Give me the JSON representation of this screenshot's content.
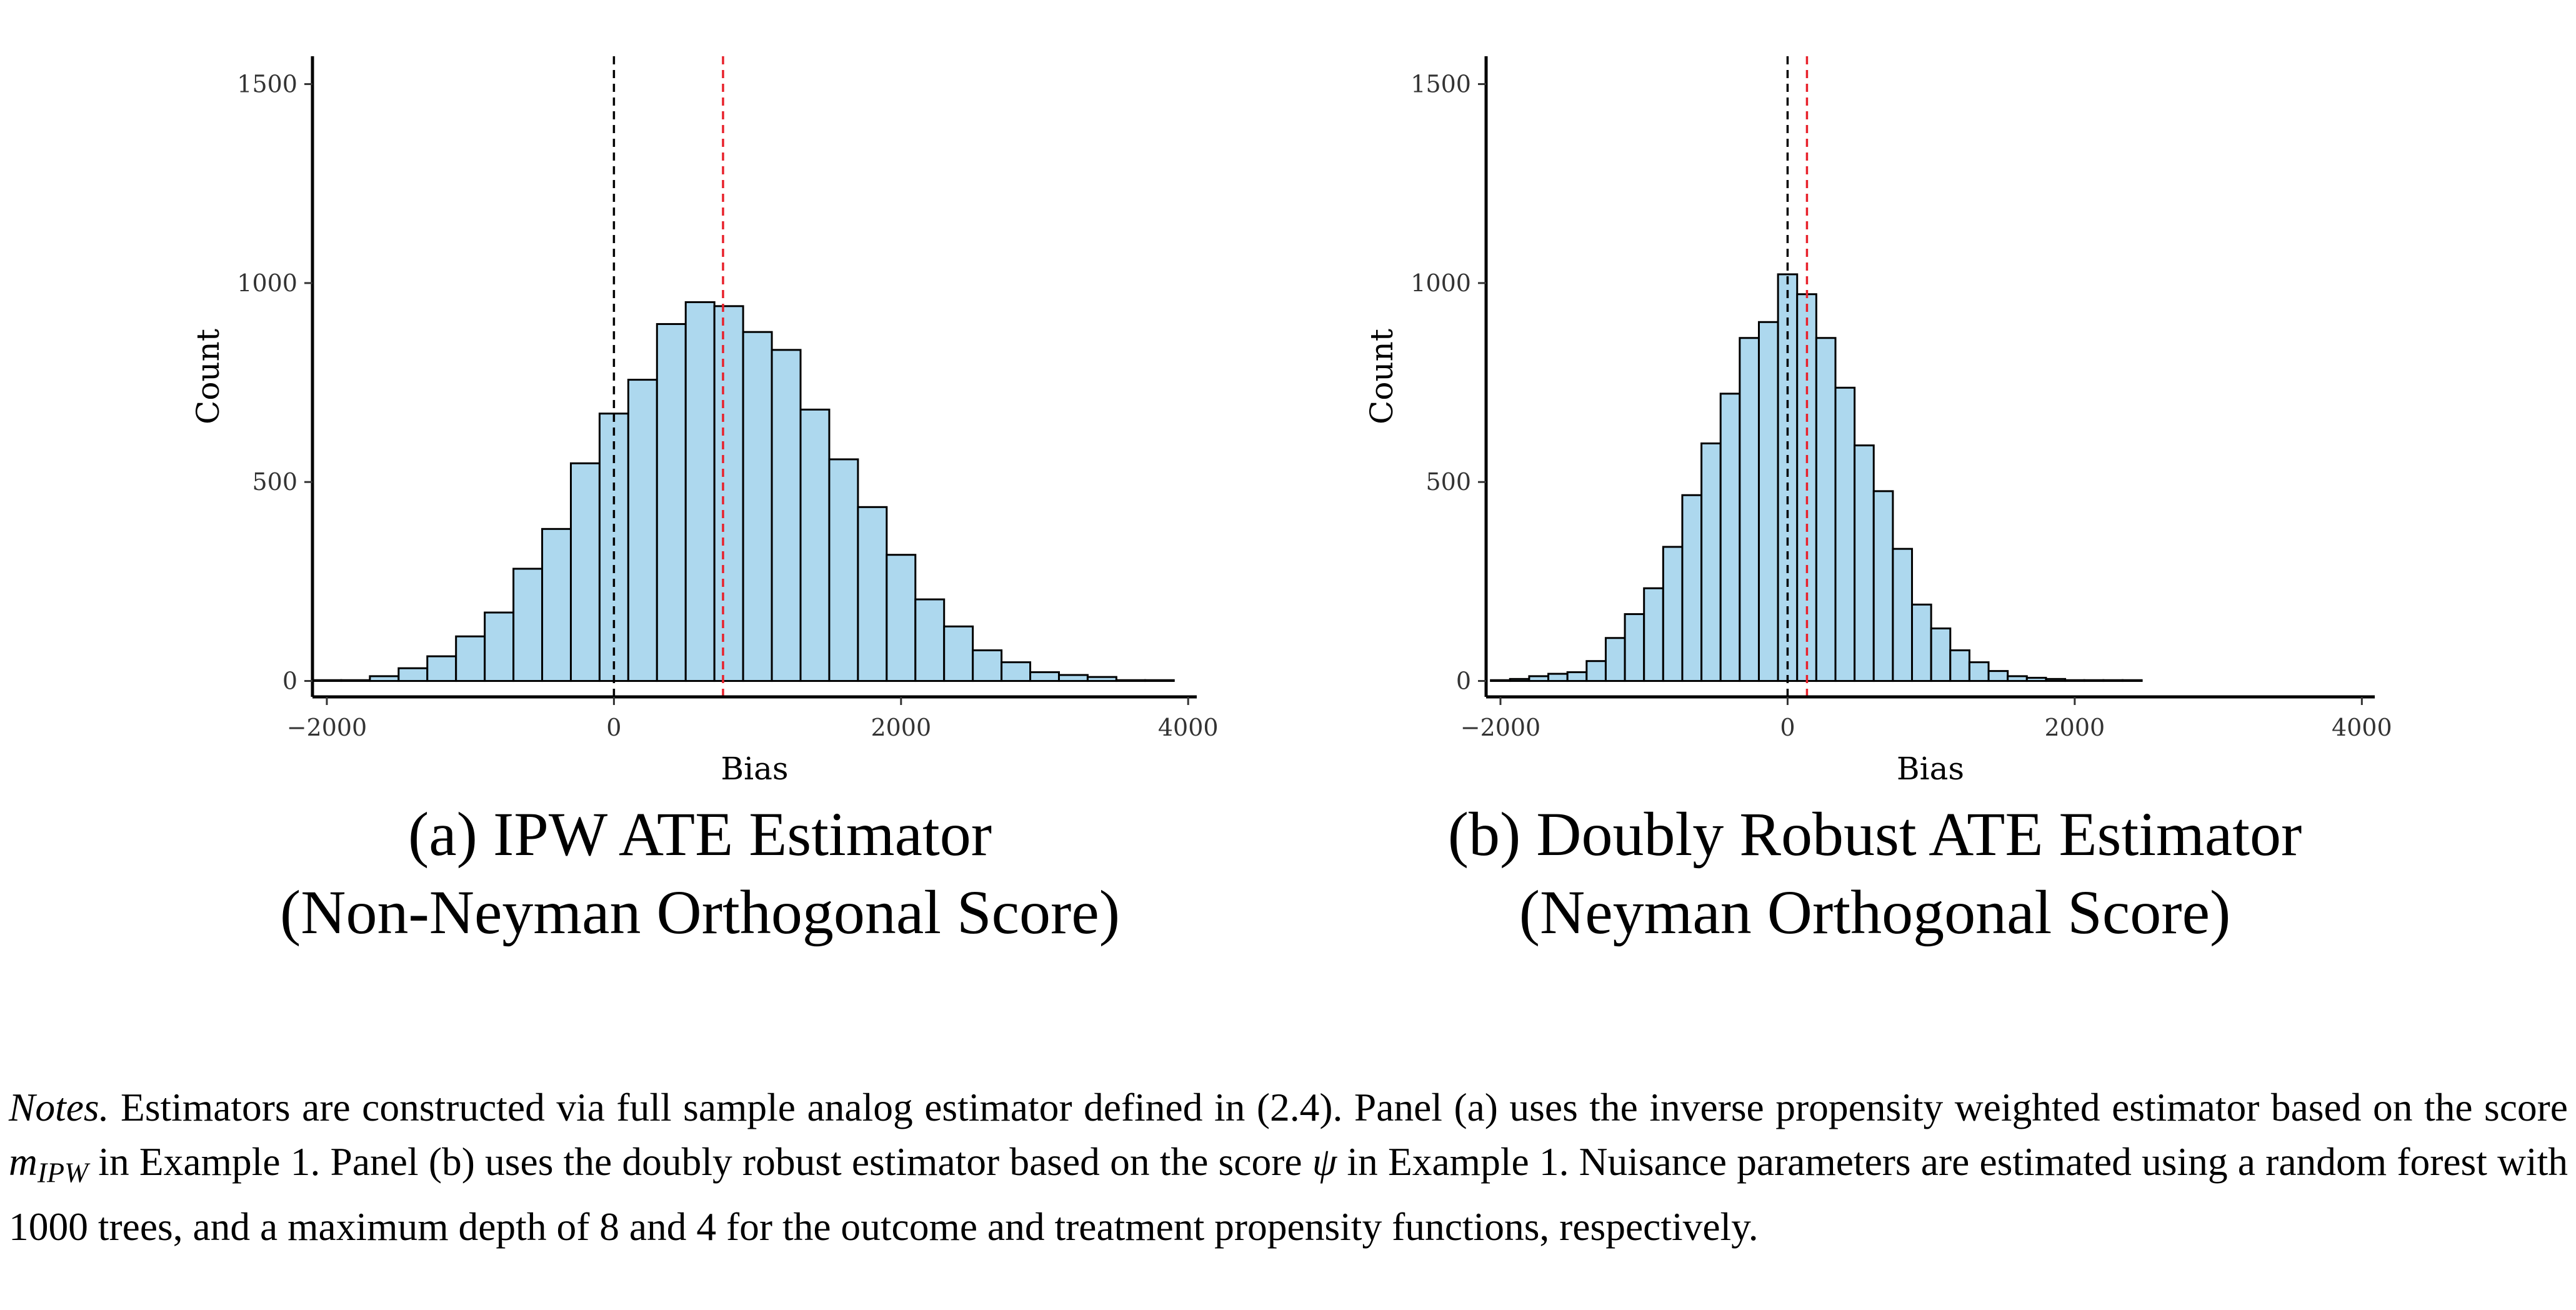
{
  "chart_data": [
    {
      "type": "bar",
      "panel": "a",
      "xlabel": "Bias",
      "ylabel": "Count",
      "xlim": [
        -2100,
        4060
      ],
      "ylim": [
        -40,
        1570
      ],
      "xticks": [
        -2000,
        0,
        2000,
        4000
      ],
      "xtick_labels": [
        "−2000",
        "0",
        "2000",
        "4000"
      ],
      "yticks": [
        0,
        500,
        1000,
        1500
      ],
      "ytick_labels": [
        "0",
        "500",
        "1000",
        "1500"
      ],
      "bin_width": 200,
      "bin_centers": [
        -2000,
        -1800,
        -1600,
        -1400,
        -1200,
        -1000,
        -800,
        -600,
        -400,
        -200,
        0,
        200,
        400,
        600,
        800,
        1000,
        1200,
        1400,
        1600,
        1800,
        2000,
        2200,
        2400,
        2600,
        2800,
        3000,
        3200,
        3400,
        3600,
        3800
      ],
      "counts": [
        2,
        2,
        12,
        32,
        62,
        112,
        172,
        282,
        382,
        547,
        672,
        757,
        897,
        952,
        942,
        877,
        832,
        682,
        557,
        437,
        317,
        205,
        137,
        77,
        47,
        22,
        15,
        10,
        2,
        2
      ],
      "bar_fill": "#add8ee",
      "bar_stroke": "#000000",
      "reference_lines": [
        {
          "x": 0,
          "color": "#000000",
          "style": "dashed"
        },
        {
          "x": 760,
          "color": "#e8202a",
          "style": "dashed"
        }
      ],
      "grid": false
    },
    {
      "type": "bar",
      "panel": "b",
      "xlabel": "Bias",
      "ylabel": "Count",
      "xlim": [
        -2100,
        4090
      ],
      "ylim": [
        -40,
        1570
      ],
      "xticks": [
        -2000,
        0,
        2000,
        4000
      ],
      "xtick_labels": [
        "−2000",
        "0",
        "2000",
        "4000"
      ],
      "yticks": [
        0,
        500,
        1000,
        1500
      ],
      "ytick_labels": [
        "0",
        "500",
        "1000",
        "1500"
      ],
      "bin_width": 133.33,
      "bin_centers": [
        -2000,
        -1866.7,
        -1733.3,
        -1600,
        -1466.7,
        -1333.3,
        -1200,
        -1066.7,
        -933.3,
        -800,
        -666.7,
        -533.3,
        -400,
        -266.7,
        -133.3,
        0,
        133.3,
        266.7,
        400,
        533.3,
        666.7,
        800,
        933.3,
        1066.7,
        1200,
        1333.3,
        1466.7,
        1600,
        1733.3,
        1866.7,
        2000,
        2133.3,
        2266.7,
        2400,
        2533.3
      ],
      "counts": [
        2,
        5,
        12,
        18,
        22,
        50,
        108,
        168,
        233,
        337,
        467,
        597,
        722,
        862,
        902,
        1022,
        972,
        862,
        737,
        592,
        477,
        332,
        192,
        132,
        77,
        47,
        25,
        12,
        8,
        5,
        2,
        2,
        2,
        2,
        0
      ],
      "bar_fill": "#add8ee",
      "bar_stroke": "#000000",
      "reference_lines": [
        {
          "x": 0,
          "color": "#000000",
          "style": "dashed"
        },
        {
          "x": 135,
          "color": "#e8202a",
          "style": "dashed"
        }
      ],
      "grid": false
    }
  ],
  "captions": {
    "a": {
      "line1": "(a) IPW ATE Estimator",
      "line2": "(Non-Neyman Orthogonal Score)"
    },
    "b": {
      "line1": "(b) Doubly Robust ATE Estimator",
      "line2": "(Neyman Orthogonal Score)"
    }
  },
  "notes": {
    "label": "Notes.",
    "text1": "Estimators are constructed via full sample analog estimator defined in (2.4). Panel (a) uses the inverse propensity weighted estimator based on the score",
    "m_symbol": "m",
    "m_subscript": "IPW",
    "text2": "in Example 1. Panel (b) uses the doubly robust estimator based on the score",
    "psi_symbol": "ψ",
    "text3": "in Example 1. Nuisance parameters are estimated using a random forest with 1000 trees, and a maximum depth of 8 and 4 for the outcome and treatment propensity functions, respectively."
  }
}
